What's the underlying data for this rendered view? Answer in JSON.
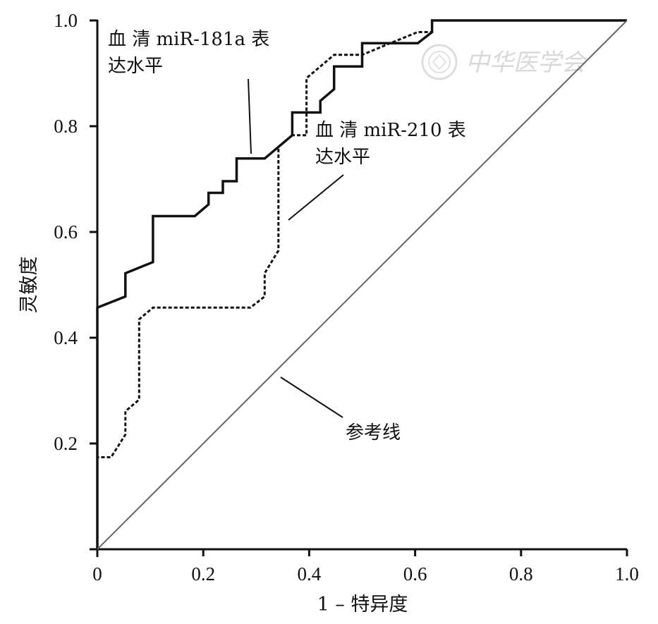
{
  "chart_data": {
    "type": "line",
    "xlabel": "1 – 特异度",
    "ylabel": "灵敏度",
    "xlim": [
      0,
      1
    ],
    "ylim": [
      0,
      1
    ],
    "xticks": [
      "0",
      "0.2",
      "0.4",
      "0.6",
      "0.8",
      "1.0"
    ],
    "yticks": [
      "0.2",
      "0.4",
      "0.6",
      "0.8",
      "1.0"
    ],
    "grid": false,
    "series": [
      {
        "name": "血清 miR-181a 表达水平",
        "style": "solid",
        "color": "#111111",
        "x": [
          0,
          0,
          0.053,
          0.053,
          0.105,
          0.105,
          0.184,
          0.21,
          0.21,
          0.237,
          0.237,
          0.263,
          0.263,
          0.316,
          0.368,
          0.368,
          0.421,
          0.421,
          0.447,
          0.447,
          0.5,
          0.5,
          0.605,
          0.632,
          0.632,
          1.0
        ],
        "y": [
          0,
          0.457,
          0.478,
          0.522,
          0.543,
          0.63,
          0.63,
          0.652,
          0.674,
          0.674,
          0.696,
          0.696,
          0.739,
          0.739,
          0.783,
          0.826,
          0.826,
          0.848,
          0.87,
          0.913,
          0.913,
          0.957,
          0.957,
          0.978,
          1.0,
          1.0
        ]
      },
      {
        "name": "血清 miR-210 表达水平",
        "style": "dashed",
        "color": "#111111",
        "x": [
          0,
          0,
          0.026,
          0.053,
          0.053,
          0.079,
          0.079,
          0.105,
          0.105,
          0.289,
          0.316,
          0.316,
          0.342,
          0.342,
          0.368,
          0.395,
          0.395,
          0.447,
          0.5,
          0.553,
          0.605,
          0.632,
          0.632,
          1.0
        ],
        "y": [
          0,
          0.174,
          0.174,
          0.217,
          0.261,
          0.283,
          0.435,
          0.457,
          0.457,
          0.457,
          0.478,
          0.522,
          0.565,
          0.761,
          0.783,
          0.783,
          0.891,
          0.935,
          0.935,
          0.957,
          0.978,
          0.978,
          1.0,
          1.0
        ]
      },
      {
        "name": "参考线",
        "style": "reference",
        "color": "#666666",
        "x": [
          0,
          1
        ],
        "y": [
          0,
          1
        ]
      }
    ],
    "annotations": [
      {
        "lines": [
          "血 清 miR-181a 表",
          "达水平"
        ],
        "series": 0
      },
      {
        "lines": [
          "血 清 miR-210 表",
          "达水平"
        ],
        "series": 1
      },
      {
        "lines": [
          "参考线"
        ],
        "series": 2
      }
    ]
  },
  "watermark": {
    "text": "中华医学会",
    "seal_icon": "seal-icon"
  }
}
